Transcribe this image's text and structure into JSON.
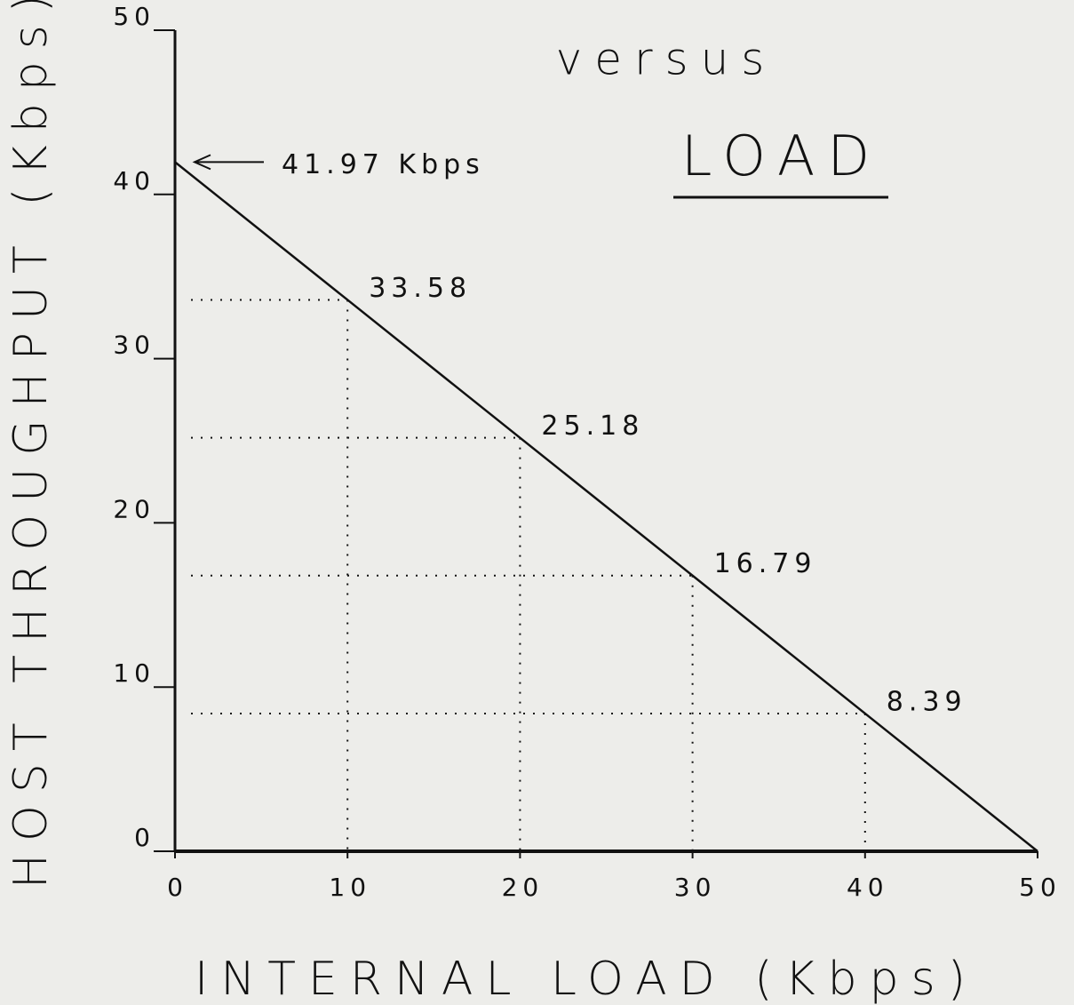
{
  "chart_data": {
    "type": "line",
    "title": "versus",
    "subtitle": "LOAD",
    "x_label": "INTERNAL LOAD (Kbps)",
    "y_label": "HOST THROUGHPUT (Kbps)",
    "x": [
      0,
      10,
      20,
      30,
      40,
      50
    ],
    "values": [
      41.97,
      33.58,
      25.18,
      16.79,
      8.39,
      0
    ],
    "value_labels": [
      "41.97 Kbps",
      "33.58",
      "25.18",
      "16.79",
      "8.39",
      null
    ],
    "color": "#111111",
    "xlim": [
      0,
      50
    ],
    "xticks": [
      0,
      10,
      20,
      30,
      40,
      50
    ],
    "ylim": [
      0,
      50
    ],
    "yticks": [
      0,
      10,
      20,
      30,
      40,
      50
    ]
  }
}
